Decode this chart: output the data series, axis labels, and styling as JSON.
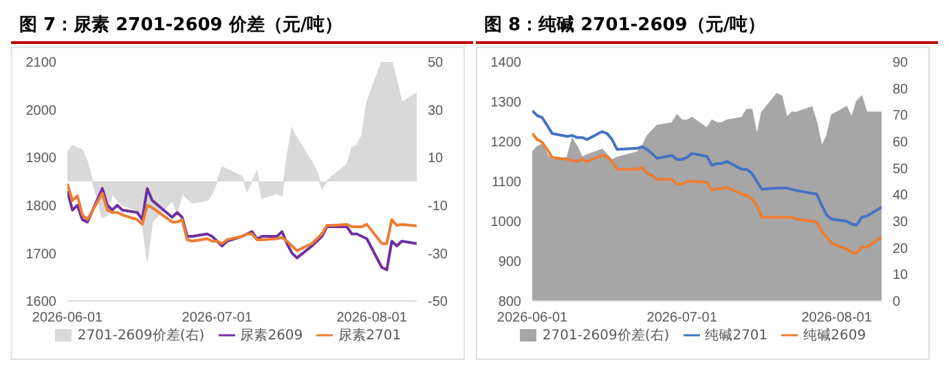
{
  "chart_data": [
    {
      "type": "line",
      "title": "图 7：尿素 2701-2609 价差（元/吨）",
      "x": [
        "2026-06-01",
        "2026-06-02",
        "2026-06-03",
        "2026-06-04",
        "2026-06-05",
        "2026-06-08",
        "2026-06-09",
        "2026-06-10",
        "2026-06-11",
        "2026-06-12",
        "2026-06-15",
        "2026-06-16",
        "2026-06-17",
        "2026-06-18",
        "2026-06-22",
        "2026-06-23",
        "2026-06-24",
        "2026-06-25",
        "2026-06-26",
        "2026-06-29",
        "2026-06-30",
        "2026-07-01",
        "2026-07-02",
        "2026-07-03",
        "2026-07-06",
        "2026-07-07",
        "2026-07-08",
        "2026-07-09",
        "2026-07-10",
        "2026-07-13",
        "2026-07-14",
        "2026-07-15",
        "2026-07-16",
        "2026-07-17",
        "2026-07-20",
        "2026-07-21",
        "2026-07-22",
        "2026-07-23",
        "2026-07-24",
        "2026-07-27",
        "2026-07-28",
        "2026-07-29",
        "2026-07-30",
        "2026-07-31",
        "2026-08-03",
        "2026-08-04",
        "2026-08-05",
        "2026-08-06",
        "2026-08-07",
        "2026-08-10"
      ],
      "series": [
        {
          "name": "2701-2609价差(右)",
          "type": "area",
          "axis": "y2",
          "color": "#d9d9d9",
          "values": [
            12,
            15,
            14,
            13,
            8,
            -15,
            -14,
            -5,
            -8,
            -10,
            -12,
            -17,
            -33,
            -17,
            -8,
            -13,
            -5,
            -7,
            -9,
            -8,
            -5,
            0,
            6,
            5,
            2,
            -4,
            0,
            4,
            -7,
            -5,
            -6,
            10,
            22,
            18,
            8,
            4,
            -3,
            0,
            2,
            7,
            14,
            15,
            19,
            33,
            50,
            50,
            50,
            42,
            33,
            37
          ]
        },
        {
          "name": "尿素2609",
          "color": "#7030a0",
          "values": [
            1830,
            1790,
            1800,
            1770,
            1765,
            1835,
            1800,
            1790,
            1800,
            1790,
            1785,
            1770,
            1835,
            1810,
            1775,
            1785,
            1775,
            1735,
            1735,
            1740,
            1735,
            1725,
            1715,
            1725,
            1735,
            1740,
            1745,
            1730,
            1735,
            1735,
            1745,
            1720,
            1700,
            1690,
            1715,
            1725,
            1735,
            1755,
            1755,
            1755,
            1740,
            1740,
            1735,
            1730,
            1670,
            1665,
            1725,
            1715,
            1725,
            1720
          ]
        },
        {
          "name": "尿素2701",
          "color": "#ed7d31",
          "values": [
            1845,
            1810,
            1820,
            1780,
            1770,
            1825,
            1790,
            1785,
            1785,
            1780,
            1770,
            1760,
            1800,
            1795,
            1765,
            1765,
            1770,
            1728,
            1725,
            1730,
            1725,
            1725,
            1720,
            1728,
            1735,
            1740,
            1740,
            1728,
            1728,
            1730,
            1733,
            1725,
            1715,
            1705,
            1720,
            1730,
            1740,
            1758,
            1758,
            1760,
            1755,
            1755,
            1755,
            1760,
            1720,
            1720,
            1770,
            1758,
            1760,
            1757
          ]
        }
      ],
      "xlim": [
        "2026-06-01",
        "2026-08-10"
      ],
      "xticks": [
        "2026-06-01",
        "2026-07-01",
        "2026-08-01"
      ],
      "ylim": [
        1600,
        2100
      ],
      "yticks": [
        1600,
        1700,
        1800,
        1900,
        2000,
        2100
      ],
      "y2lim": [
        -50,
        50
      ],
      "y2ticks": [
        -50,
        -30,
        -10,
        10,
        30,
        50
      ],
      "grid": false,
      "legend": "bottom",
      "marker": "none",
      "line_style": "solid"
    },
    {
      "type": "line",
      "title": "图 8：纯碱 2701-2609（元/吨）",
      "x": [
        "2026-06-01",
        "2026-06-02",
        "2026-06-03",
        "2026-06-04",
        "2026-06-05",
        "2026-06-08",
        "2026-06-09",
        "2026-06-10",
        "2026-06-11",
        "2026-06-12",
        "2026-06-15",
        "2026-06-16",
        "2026-06-17",
        "2026-06-18",
        "2026-06-22",
        "2026-06-23",
        "2026-06-24",
        "2026-06-25",
        "2026-06-26",
        "2026-06-29",
        "2026-06-30",
        "2026-07-01",
        "2026-07-02",
        "2026-07-03",
        "2026-07-06",
        "2026-07-07",
        "2026-07-08",
        "2026-07-09",
        "2026-07-10",
        "2026-07-13",
        "2026-07-14",
        "2026-07-15",
        "2026-07-16",
        "2026-07-17",
        "2026-07-20",
        "2026-07-21",
        "2026-07-22",
        "2026-07-23",
        "2026-07-24",
        "2026-07-27",
        "2026-07-28",
        "2026-07-29",
        "2026-07-30",
        "2026-07-31",
        "2026-08-03",
        "2026-08-04",
        "2026-08-05",
        "2026-08-06",
        "2026-08-07",
        "2026-08-10"
      ],
      "series": [
        {
          "name": "2701-2609价差(右)",
          "type": "area",
          "axis": "y2",
          "color": "#a6a6a6",
          "values": [
            56,
            58,
            59,
            55,
            53,
            54,
            61,
            58,
            54,
            55,
            57,
            55,
            53,
            54,
            56,
            58,
            62,
            64,
            66,
            67,
            70,
            68,
            68,
            69,
            65,
            68,
            67,
            67,
            68,
            69,
            72,
            72,
            62,
            71,
            78,
            77,
            69,
            71,
            71,
            73,
            67,
            58,
            62,
            70,
            73,
            69,
            75,
            77,
            71,
            71
          ]
        },
        {
          "name": "纯碱2701",
          "color": "#4472c4",
          "values": [
            1277,
            1265,
            1260,
            1240,
            1220,
            1213,
            1215,
            1210,
            1210,
            1205,
            1225,
            1220,
            1205,
            1180,
            1183,
            1187,
            1180,
            1170,
            1158,
            1165,
            1155,
            1155,
            1160,
            1170,
            1163,
            1140,
            1145,
            1145,
            1150,
            1130,
            1130,
            1120,
            1100,
            1080,
            1083,
            1083,
            1083,
            1080,
            1077,
            1070,
            1068,
            1040,
            1015,
            1005,
            1000,
            993,
            990,
            1010,
            1013,
            1035
          ]
        },
        {
          "name": "纯碱2609",
          "color": "#ed7d31",
          "values": [
            1220,
            1205,
            1198,
            1180,
            1160,
            1155,
            1152,
            1150,
            1155,
            1150,
            1165,
            1162,
            1150,
            1130,
            1130,
            1135,
            1120,
            1115,
            1105,
            1105,
            1093,
            1093,
            1100,
            1100,
            1098,
            1078,
            1082,
            1082,
            1085,
            1068,
            1065,
            1055,
            1040,
            1010,
            1010,
            1010,
            1010,
            1010,
            1005,
            1000,
            997,
            975,
            960,
            945,
            930,
            922,
            920,
            935,
            935,
            960
          ]
        }
      ],
      "xlim": [
        "2026-06-01",
        "2026-08-10"
      ],
      "xticks": [
        "2026-06-01",
        "2026-07-01",
        "2026-08-01"
      ],
      "ylim": [
        800,
        1400
      ],
      "yticks": [
        800,
        900,
        1000,
        1100,
        1200,
        1300,
        1400
      ],
      "y2lim": [
        0,
        90
      ],
      "y2ticks": [
        0,
        10,
        20,
        30,
        40,
        50,
        60,
        70,
        80,
        90
      ],
      "grid": false,
      "legend": "bottom",
      "marker": "none",
      "line_style": "solid"
    }
  ]
}
